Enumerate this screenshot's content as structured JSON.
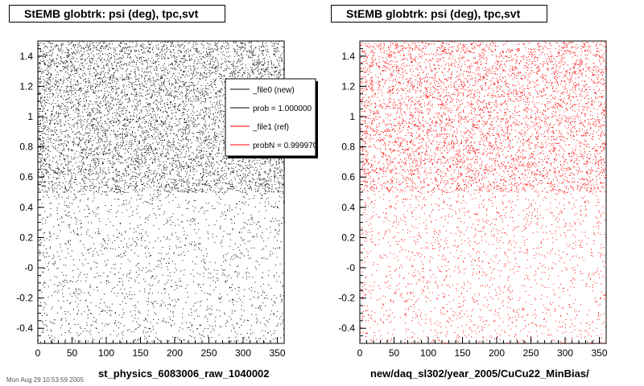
{
  "panels": [
    {
      "title": "StEMB globtrk: psi (deg), tpc,svt",
      "xcaption": "st_physics_6083006_raw_1040002",
      "color": "#000000"
    },
    {
      "title": "StEMB globtrk: psi (deg), tpc,svt",
      "xcaption": "new/daq_sl302/year_2005/CuCu22_MinBias/",
      "color": "#ff0000"
    }
  ],
  "legend": {
    "entries": [
      {
        "label": "_file0 (new)",
        "color": "#000000"
      },
      {
        "label": "prob = 1.000000",
        "color": "#000000"
      },
      {
        "label": "_file1 (ref)",
        "color": "#ff0000"
      },
      {
        "label": "probN = 0.999970",
        "color": "#ff0000"
      }
    ]
  },
  "footer": "Mon Aug 29 10:53:59 2005",
  "chart_data": [
    {
      "type": "scatter",
      "title": "StEMB globtrk: psi (deg), tpc,svt",
      "xlabel": "st_physics_6083006_raw_1040002",
      "ylabel": "",
      "xlim": [
        0,
        360
      ],
      "ylim": [
        -0.5,
        1.5
      ],
      "xticks": [
        "0",
        "50",
        "100",
        "150",
        "200",
        "250",
        "300",
        "350"
      ],
      "yticks": [
        "-0.4",
        "-0.2",
        "-0",
        "0.2",
        "0.4",
        "0.6",
        "0.8",
        "1",
        "1.2",
        "1.4"
      ],
      "series": [
        {
          "name": "_file0 (new)",
          "color": "#000000",
          "regions": [
            {
              "y": [
                0.5,
                1.5
              ],
              "density": "high"
            },
            {
              "y": [
                -0.5,
                0.5
              ],
              "density": "low"
            }
          ]
        }
      ]
    },
    {
      "type": "scatter",
      "title": "StEMB globtrk: psi (deg), tpc,svt",
      "xlabel": "new/daq_sl302/year_2005/CuCu22_MinBias/",
      "ylabel": "",
      "xlim": [
        0,
        360
      ],
      "ylim": [
        -0.5,
        1.5
      ],
      "xticks": [
        "0",
        "50",
        "100",
        "150",
        "200",
        "250",
        "300",
        "350"
      ],
      "yticks": [
        "-0.4",
        "-0.2",
        "-0",
        "0.2",
        "0.4",
        "0.6",
        "0.8",
        "1",
        "1.2",
        "1.4"
      ],
      "series": [
        {
          "name": "_file1 (ref)",
          "color": "#ff0000",
          "regions": [
            {
              "y": [
                0.5,
                1.5
              ],
              "density": "high"
            },
            {
              "y": [
                -0.5,
                0.5
              ],
              "density": "low"
            }
          ]
        }
      ]
    }
  ]
}
